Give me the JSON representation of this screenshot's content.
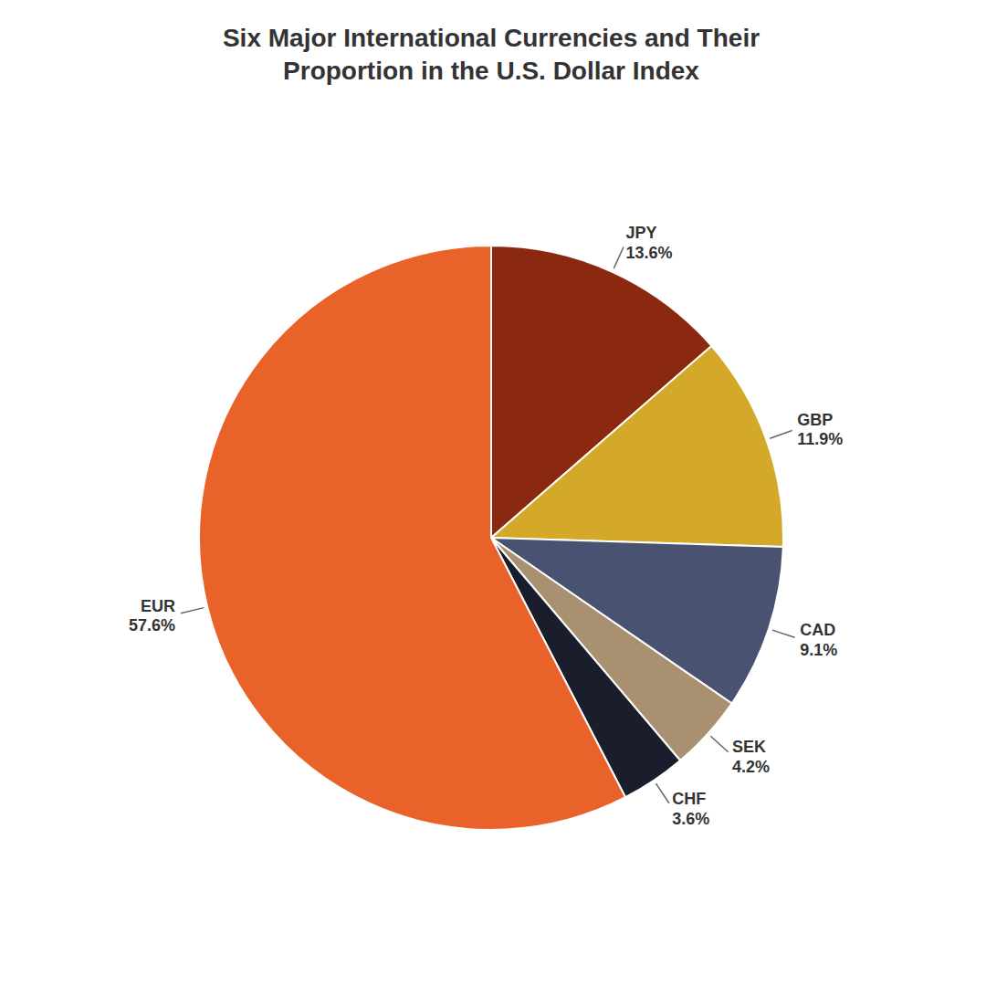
{
  "chart_data": {
    "type": "pie",
    "title": "Six Major International Currencies and Their\nProportion in the U.S. Dollar Index",
    "categories": [
      "JPY",
      "GBP",
      "CAD",
      "SEK",
      "CHF",
      "EUR"
    ],
    "values": [
      13.6,
      11.9,
      9.1,
      4.2,
      3.6,
      57.6
    ],
    "value_labels": [
      "13.6%",
      "11.9%",
      "9.1%",
      "4.2%",
      "3.6%",
      "57.6%"
    ],
    "colors": [
      "#8B2810",
      "#D4A828",
      "#4A5272",
      "#A89070",
      "#1A1E2C",
      "#E8622A"
    ],
    "data_labels": true
  }
}
